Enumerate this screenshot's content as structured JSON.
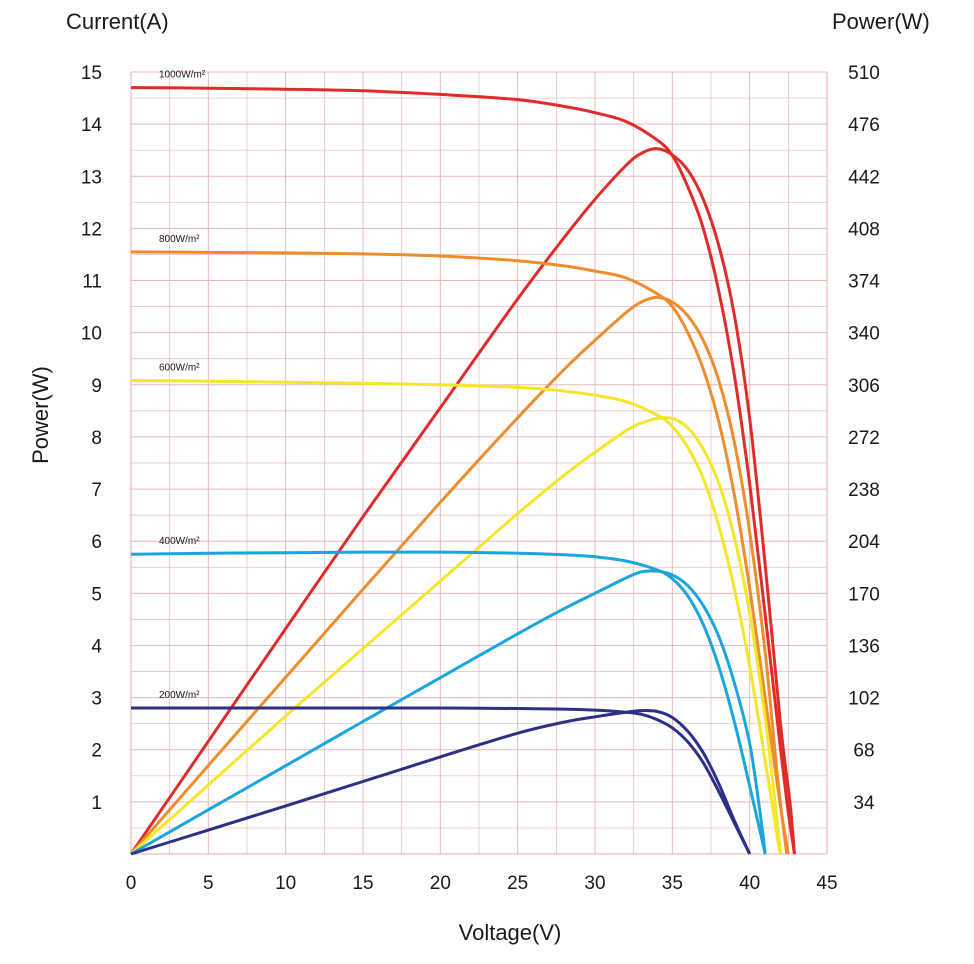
{
  "chart_data": {
    "type": "line",
    "xlabel": "Voltage(V)",
    "ylabel_left_top": "Current(A)",
    "ylabel_left_side": "Power(W)",
    "ylabel_right_top": "Power(W)",
    "xlim": [
      0,
      45
    ],
    "ylim_current": [
      0,
      15
    ],
    "ylim_power": [
      0,
      510
    ],
    "x_ticks": [
      "0",
      "5",
      "10",
      "15",
      "20",
      "25",
      "30",
      "35",
      "40",
      "45"
    ],
    "y_ticks_current": [
      "1",
      "2",
      "3",
      "4",
      "5",
      "6",
      "7",
      "8",
      "9",
      "10",
      "11",
      "12",
      "13",
      "14",
      "15"
    ],
    "y_ticks_power": [
      "34",
      "68",
      "102",
      "136",
      "170",
      "204",
      "238",
      "272",
      "306",
      "340",
      "374",
      "408",
      "442",
      "476",
      "510"
    ],
    "grid": true,
    "series": [
      {
        "name": "1000W/m²",
        "color": "#e02b2b",
        "iv": [
          [
            0,
            14.7
          ],
          [
            5,
            14.69
          ],
          [
            10,
            14.67
          ],
          [
            15,
            14.64
          ],
          [
            20,
            14.57
          ],
          [
            25,
            14.47
          ],
          [
            28,
            14.34
          ],
          [
            30,
            14.22
          ],
          [
            32,
            14.05
          ],
          [
            34,
            13.7
          ],
          [
            35,
            13.4
          ],
          [
            36,
            12.8
          ],
          [
            37,
            12.0
          ],
          [
            38,
            10.8
          ],
          [
            39,
            9.2
          ],
          [
            40,
            7.1
          ],
          [
            41,
            4.6
          ],
          [
            42,
            2.0
          ],
          [
            42.5,
            0.8
          ],
          [
            42.9,
            0
          ]
        ],
        "pv": [
          [
            0,
            0
          ],
          [
            5,
            73.5
          ],
          [
            10,
            147
          ],
          [
            15,
            220
          ],
          [
            20,
            291
          ],
          [
            25,
            362
          ],
          [
            28,
            402
          ],
          [
            30,
            427
          ],
          [
            32,
            449
          ],
          [
            33,
            457
          ],
          [
            34,
            460
          ],
          [
            35,
            456
          ],
          [
            36,
            446
          ],
          [
            37,
            427
          ],
          [
            38,
            397
          ],
          [
            39,
            352
          ],
          [
            40,
            284
          ],
          [
            41,
            189
          ],
          [
            42,
            84
          ],
          [
            42.6,
            34
          ],
          [
            42.9,
            0
          ]
        ]
      },
      {
        "name": "800W/m²",
        "color": "#ee8d2e",
        "iv": [
          [
            0,
            11.55
          ],
          [
            5,
            11.54
          ],
          [
            10,
            11.53
          ],
          [
            15,
            11.51
          ],
          [
            20,
            11.47
          ],
          [
            25,
            11.38
          ],
          [
            28,
            11.28
          ],
          [
            30,
            11.18
          ],
          [
            32,
            11.05
          ],
          [
            34,
            10.75
          ],
          [
            35,
            10.5
          ],
          [
            36,
            10.0
          ],
          [
            37,
            9.3
          ],
          [
            38,
            8.3
          ],
          [
            39,
            6.9
          ],
          [
            40,
            5.1
          ],
          [
            41,
            3.0
          ],
          [
            42,
            0.9
          ],
          [
            42.5,
            0
          ]
        ],
        "pv": [
          [
            0,
            0
          ],
          [
            5,
            57.7
          ],
          [
            10,
            115.3
          ],
          [
            15,
            172.6
          ],
          [
            20,
            229.4
          ],
          [
            25,
            284.5
          ],
          [
            28,
            316
          ],
          [
            30,
            335
          ],
          [
            32,
            353
          ],
          [
            33,
            360
          ],
          [
            34,
            363
          ],
          [
            35,
            360
          ],
          [
            36,
            351
          ],
          [
            37,
            335
          ],
          [
            38,
            309
          ],
          [
            39,
            269
          ],
          [
            40,
            210
          ],
          [
            41,
            132
          ],
          [
            41.8,
            50
          ],
          [
            42.4,
            0
          ]
        ]
      },
      {
        "name": "600W/m²",
        "color": "#f6e62a",
        "iv": [
          [
            0,
            9.08
          ],
          [
            5,
            9.07
          ],
          [
            10,
            9.05
          ],
          [
            15,
            9.03
          ],
          [
            20,
            9.0
          ],
          [
            25,
            8.95
          ],
          [
            28,
            8.88
          ],
          [
            30,
            8.8
          ],
          [
            32,
            8.68
          ],
          [
            34,
            8.42
          ],
          [
            35,
            8.2
          ],
          [
            36,
            7.8
          ],
          [
            37,
            7.2
          ],
          [
            38,
            6.3
          ],
          [
            39,
            5.1
          ],
          [
            40,
            3.6
          ],
          [
            41,
            1.8
          ],
          [
            41.8,
            0.3
          ],
          [
            42.0,
            0
          ]
        ],
        "pv": [
          [
            0,
            0
          ],
          [
            5,
            45
          ],
          [
            10,
            90
          ],
          [
            15,
            134
          ],
          [
            20,
            178
          ],
          [
            25,
            222
          ],
          [
            28,
            247
          ],
          [
            30,
            262
          ],
          [
            32,
            276
          ],
          [
            33,
            281
          ],
          [
            34,
            284
          ],
          [
            35,
            284
          ],
          [
            36,
            278
          ],
          [
            37,
            264
          ],
          [
            38,
            242
          ],
          [
            39,
            207
          ],
          [
            40,
            157
          ],
          [
            41,
            89
          ],
          [
            41.7,
            28
          ],
          [
            42.0,
            0
          ]
        ]
      },
      {
        "name": "400W/m²",
        "color": "#1aa6dc",
        "iv": [
          [
            0,
            5.75
          ],
          [
            5,
            5.77
          ],
          [
            10,
            5.78
          ],
          [
            15,
            5.79
          ],
          [
            20,
            5.79
          ],
          [
            25,
            5.77
          ],
          [
            28,
            5.74
          ],
          [
            30,
            5.7
          ],
          [
            32,
            5.62
          ],
          [
            34,
            5.45
          ],
          [
            35,
            5.28
          ],
          [
            36,
            4.95
          ],
          [
            37,
            4.4
          ],
          [
            38,
            3.6
          ],
          [
            39,
            2.55
          ],
          [
            40,
            1.3
          ],
          [
            40.7,
            0.4
          ],
          [
            41.0,
            0
          ]
        ],
        "pv": [
          [
            0,
            0
          ],
          [
            5,
            28.8
          ],
          [
            10,
            57.6
          ],
          [
            15,
            86.4
          ],
          [
            20,
            115
          ],
          [
            25,
            143.6
          ],
          [
            28,
            160
          ],
          [
            30,
            170
          ],
          [
            32,
            180
          ],
          [
            33,
            184
          ],
          [
            34,
            184.5
          ],
          [
            35,
            182
          ],
          [
            36,
            175
          ],
          [
            37,
            162
          ],
          [
            38,
            142
          ],
          [
            39,
            112
          ],
          [
            40,
            72
          ],
          [
            40.7,
            25
          ],
          [
            41.0,
            0
          ]
        ]
      },
      {
        "name": "200W/m²",
        "color": "#2c3185",
        "iv": [
          [
            0,
            2.8
          ],
          [
            5,
            2.8
          ],
          [
            10,
            2.8
          ],
          [
            15,
            2.8
          ],
          [
            20,
            2.8
          ],
          [
            25,
            2.79
          ],
          [
            28,
            2.78
          ],
          [
            30,
            2.76
          ],
          [
            32,
            2.72
          ],
          [
            33,
            2.68
          ],
          [
            34,
            2.58
          ],
          [
            35,
            2.42
          ],
          [
            36,
            2.15
          ],
          [
            37,
            1.75
          ],
          [
            38,
            1.2
          ],
          [
            39,
            0.6
          ],
          [
            40,
            0
          ]
        ],
        "pv": [
          [
            0,
            0
          ],
          [
            5,
            15.6
          ],
          [
            10,
            31.4
          ],
          [
            15,
            47.3
          ],
          [
            20,
            63.3
          ],
          [
            25,
            78.8
          ],
          [
            28,
            86
          ],
          [
            30,
            89.5
          ],
          [
            32,
            92.5
          ],
          [
            33,
            93.5
          ],
          [
            34,
            93
          ],
          [
            35,
            89
          ],
          [
            36,
            80
          ],
          [
            37,
            66
          ],
          [
            38,
            46
          ],
          [
            39,
            22
          ],
          [
            40,
            0
          ]
        ]
      }
    ]
  }
}
